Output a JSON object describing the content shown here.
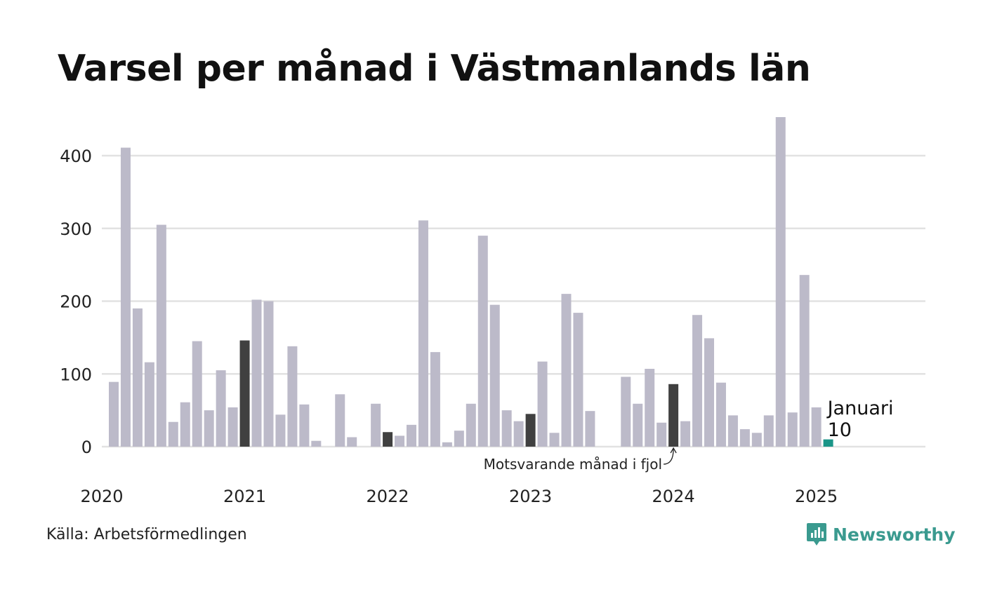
{
  "title": "Varsel per månad i Västmanlands län",
  "source": "Källa: Arbetsförmedlingen",
  "brand": {
    "name": "Newsworthy",
    "icon": "newsworthy-logo-icon"
  },
  "colors": {
    "bar": "#bcbac9",
    "highlight_prev_year": "#404040",
    "current": "#1b9588",
    "grid": "#e2e2e2",
    "brand": "#3a9a8f"
  },
  "chart_data": {
    "type": "bar",
    "y_ticks": [
      "0",
      "100",
      "200",
      "300",
      "400"
    ],
    "ylim": [
      0,
      460
    ],
    "x_ticks": [
      "2020",
      "2021",
      "2022",
      "2023",
      "2024",
      "2025"
    ],
    "grid": true,
    "months_from": "2020-01",
    "values": [
      89,
      411,
      190,
      116,
      305,
      34,
      61,
      145,
      50,
      105,
      54,
      146,
      202,
      200,
      44,
      138,
      58,
      8,
      0,
      72,
      13,
      0,
      59,
      20,
      15,
      30,
      311,
      130,
      6,
      22,
      59,
      290,
      195,
      50,
      35,
      45,
      117,
      19,
      210,
      184,
      49,
      0,
      0,
      96,
      59,
      107,
      33,
      86,
      35,
      181,
      149,
      88,
      43,
      24,
      19,
      43,
      453,
      47,
      236,
      54,
      10
    ],
    "highlighted_indices": [
      11,
      23,
      35,
      47
    ],
    "current_index": 60,
    "current_label": {
      "month": "Januari",
      "value": "10"
    },
    "annotation": "Motsvarande månad i fjol"
  }
}
